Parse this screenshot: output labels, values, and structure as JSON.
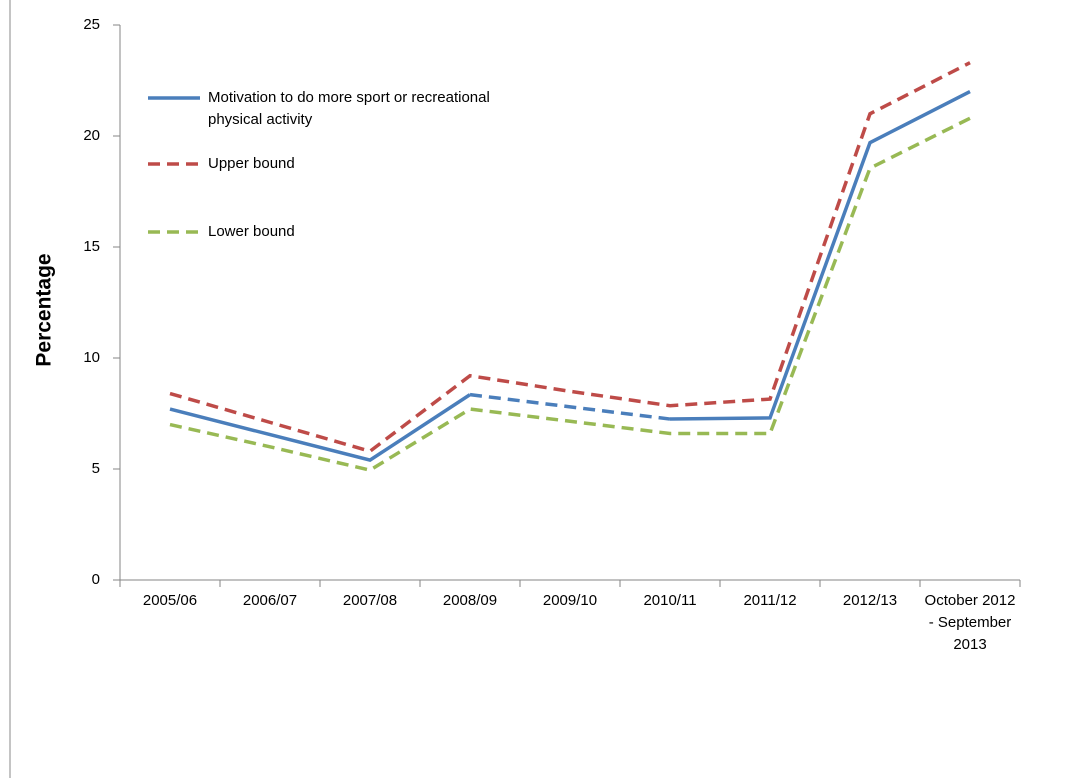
{
  "chart_data": {
    "type": "line",
    "y_label": "Percentage",
    "categories": [
      "2005/06",
      "2006/07",
      "2007/08",
      "2008/09",
      "2009/10",
      "2010/11",
      "2011/12",
      "2012/13",
      "October 2012 - September 2013"
    ],
    "ylim": [
      0,
      25
    ],
    "yticks": [
      0,
      5,
      10,
      15,
      20,
      25
    ],
    "gap_style": "dashed",
    "series": [
      {
        "name": "Motivation to do more sport or recreational physical activity",
        "color": "#4a7ebb",
        "dash": "solid",
        "values": [
          7.7,
          6.55,
          5.4,
          8.35,
          null,
          7.25,
          7.3,
          19.7,
          22.0
        ]
      },
      {
        "name": "Upper bound",
        "color": "#be4b48",
        "dash": "dashed",
        "values": [
          8.4,
          7.1,
          5.8,
          9.2,
          8.5,
          7.85,
          8.15,
          21.0,
          23.3
        ]
      },
      {
        "name": "Lower bound",
        "color": "#98b954",
        "dash": "dashed",
        "values": [
          7.0,
          6.0,
          4.95,
          7.7,
          7.15,
          6.6,
          6.6,
          18.55,
          20.8
        ]
      }
    ]
  }
}
